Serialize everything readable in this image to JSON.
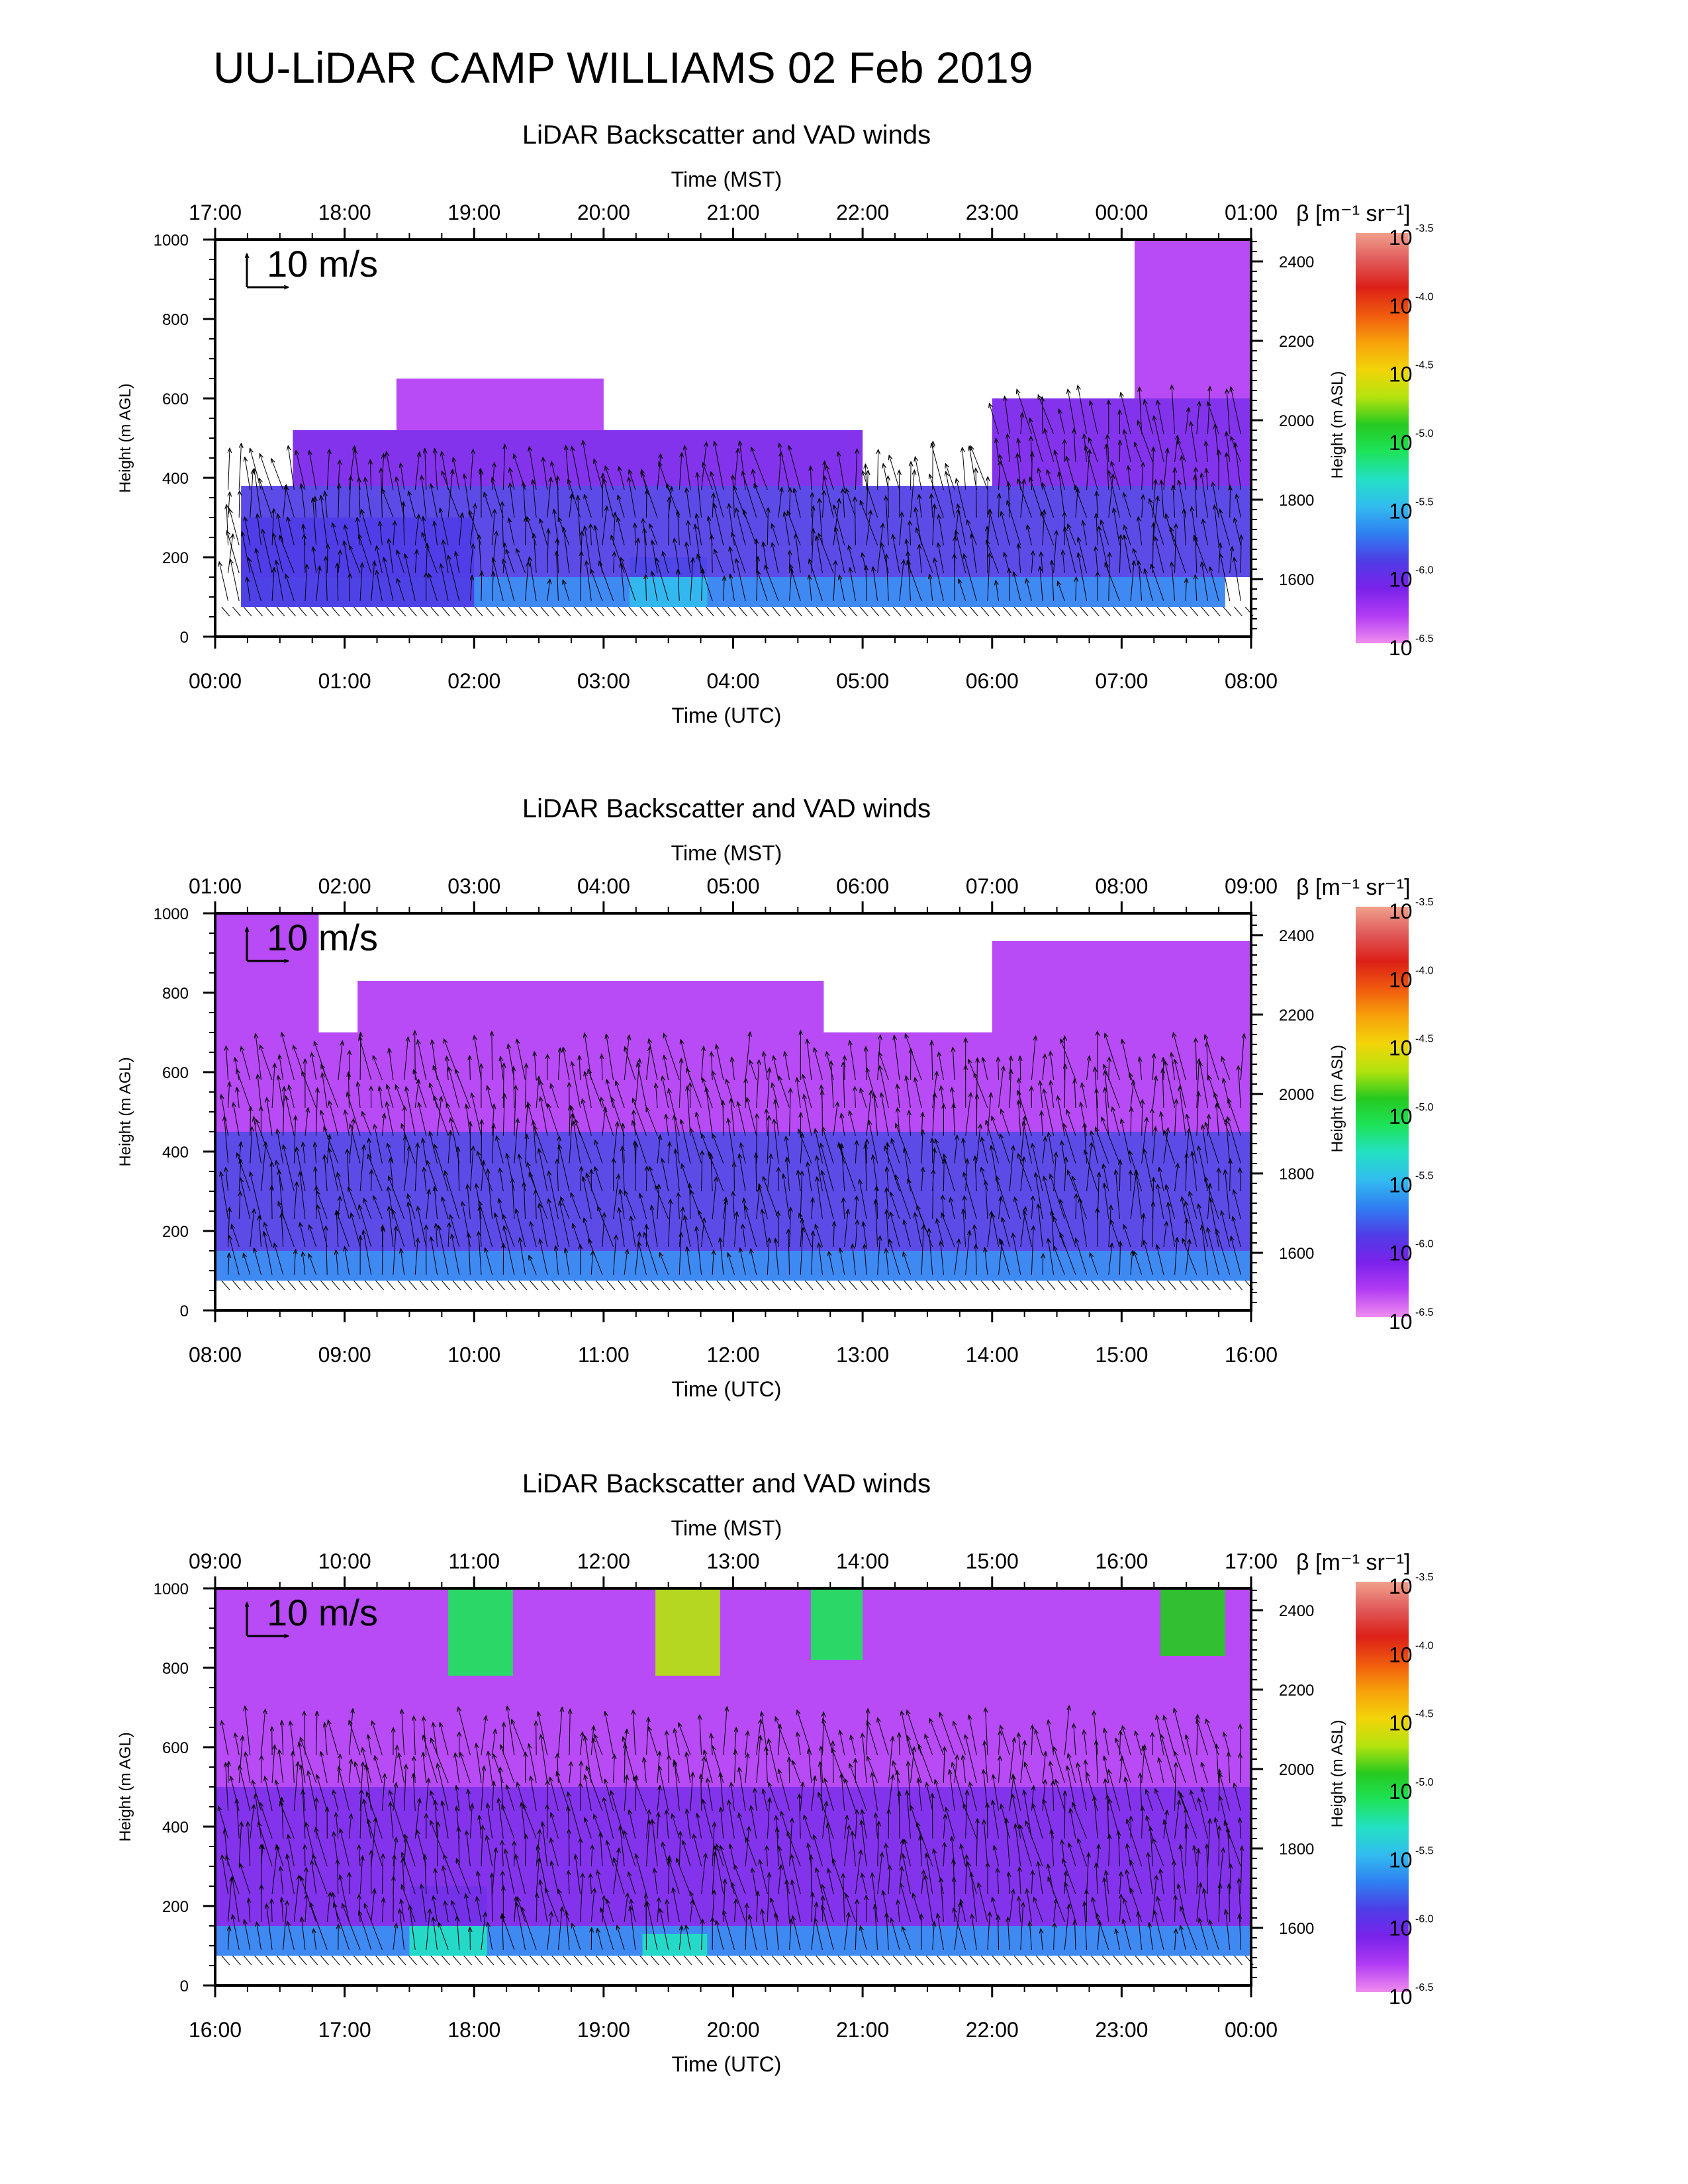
{
  "figure": {
    "title": "UU-LiDAR CAMP WILLIAMS 02 Feb 2019"
  },
  "colors": {
    "scale": [
      "#ef8cef",
      "#b23cf4",
      "#7a22ea",
      "#4f3ce6",
      "#2f7ff2",
      "#32bbef",
      "#23e0c4",
      "#1de35a",
      "#26c91f",
      "#b4e30e",
      "#f2d409",
      "#f7a10b",
      "#f05a0e",
      "#dc2018",
      "#e05a5a",
      "#f0a08c"
    ],
    "wind_vector": "#000000",
    "background": "#ffffff"
  },
  "chart_data": [
    {
      "type": "heatmap",
      "title": "LiDAR Backscatter and VAD winds",
      "top_axis_label": "Time (MST)",
      "top_ticks": [
        "17:00",
        "18:00",
        "19:00",
        "20:00",
        "21:00",
        "22:00",
        "23:00",
        "00:00",
        "01:00"
      ],
      "xlabel": "Time (UTC)",
      "x_ticks": [
        "00:00",
        "01:00",
        "02:00",
        "03:00",
        "04:00",
        "05:00",
        "06:00",
        "07:00",
        "08:00"
      ],
      "ylabel": "Height (m AGL)",
      "ylim": [
        0,
        1000
      ],
      "y_ticks": [
        0,
        200,
        400,
        600,
        800,
        1000
      ],
      "ylabel_right": "Height (m ASL)",
      "right_ticks": [
        1600,
        1800,
        2000,
        2200,
        2400
      ],
      "vector_key": "10 m/s",
      "colorbar": {
        "label": "β [m⁻¹ sr⁻¹]",
        "base": "10",
        "exponents": [
          "-3.5",
          "-4.0",
          "-4.5",
          "-5.0",
          "-5.5",
          "-6.0",
          "-6.5"
        ]
      },
      "data_bottom_m": 75,
      "layers": [
        {
          "x": [
            0.2,
            7.8
          ],
          "y": [
            75,
            150
          ],
          "log_beta": -5.8
        },
        {
          "x": [
            0.2,
            2.0
          ],
          "y": [
            75,
            300
          ],
          "log_beta": -6.0
        },
        {
          "x": [
            3.2,
            3.8
          ],
          "y": [
            75,
            200
          ],
          "log_beta": -5.7
        },
        {
          "x": [
            0.2,
            8.0
          ],
          "y": [
            150,
            380
          ],
          "log_beta": -6.2
        },
        {
          "x": [
            6.0,
            8.0
          ],
          "y": [
            380,
            600
          ],
          "log_beta": -6.4
        },
        {
          "x": [
            0.6,
            5.0
          ],
          "y": [
            380,
            520
          ],
          "log_beta": -6.4
        },
        {
          "x": [
            1.4,
            3.0
          ],
          "y": [
            520,
            650
          ],
          "log_beta": -6.6
        },
        {
          "x": [
            7.1,
            8.0
          ],
          "y": [
            600,
            1000
          ],
          "log_beta": -6.5
        }
      ]
    },
    {
      "type": "heatmap",
      "title": "LiDAR Backscatter and VAD winds",
      "top_axis_label": "Time (MST)",
      "top_ticks": [
        "01:00",
        "02:00",
        "03:00",
        "04:00",
        "05:00",
        "06:00",
        "07:00",
        "08:00",
        "09:00"
      ],
      "xlabel": "Time (UTC)",
      "x_ticks": [
        "08:00",
        "09:00",
        "10:00",
        "11:00",
        "12:00",
        "13:00",
        "14:00",
        "15:00",
        "16:00"
      ],
      "ylabel": "Height (m AGL)",
      "ylim": [
        0,
        1000
      ],
      "y_ticks": [
        0,
        200,
        400,
        600,
        800,
        1000
      ],
      "ylabel_right": "Height (m ASL)",
      "right_ticks": [
        1600,
        1800,
        2000,
        2200,
        2400
      ],
      "vector_key": "10 m/s",
      "colorbar": {
        "label": "β [m⁻¹ sr⁻¹]",
        "base": "10",
        "exponents": [
          "-3.5",
          "-4.0",
          "-4.5",
          "-5.0",
          "-5.5",
          "-6.0",
          "-6.5"
        ]
      },
      "data_bottom_m": 75,
      "layers": [
        {
          "x": [
            0.0,
            8.0
          ],
          "y": [
            75,
            150
          ],
          "log_beta": -5.9
        },
        {
          "x": [
            0.0,
            8.0
          ],
          "y": [
            150,
            450
          ],
          "log_beta": -6.2
        },
        {
          "x": [
            0.0,
            8.0
          ],
          "y": [
            450,
            700
          ],
          "log_beta": -6.5
        },
        {
          "x": [
            1.1,
            4.7
          ],
          "y": [
            700,
            830
          ],
          "log_beta": -6.6
        },
        {
          "x": [
            6.0,
            8.0
          ],
          "y": [
            700,
            930
          ],
          "log_beta": -6.6
        },
        {
          "x": [
            0.0,
            0.8
          ],
          "y": [
            700,
            1000
          ],
          "log_beta": -6.6
        }
      ]
    },
    {
      "type": "heatmap",
      "title": "LiDAR Backscatter and VAD winds",
      "top_axis_label": "Time (MST)",
      "top_ticks": [
        "09:00",
        "10:00",
        "11:00",
        "12:00",
        "13:00",
        "14:00",
        "15:00",
        "16:00",
        "17:00"
      ],
      "xlabel": "Time (UTC)",
      "x_ticks": [
        "16:00",
        "17:00",
        "18:00",
        "19:00",
        "20:00",
        "21:00",
        "22:00",
        "23:00",
        "00:00"
      ],
      "ylabel": "Height (m AGL)",
      "ylim": [
        0,
        1000
      ],
      "y_ticks": [
        0,
        200,
        400,
        600,
        800,
        1000
      ],
      "ylabel_right": "Height (m ASL)",
      "right_ticks": [
        1600,
        1800,
        2000,
        2200,
        2400
      ],
      "vector_key": "10 m/s",
      "colorbar": {
        "label": "β [m⁻¹ sr⁻¹]",
        "base": "10",
        "exponents": [
          "-3.5",
          "-4.0",
          "-4.5",
          "-5.0",
          "-5.5",
          "-6.0",
          "-6.5"
        ]
      },
      "data_bottom_m": 75,
      "layers": [
        {
          "x": [
            0.0,
            8.0
          ],
          "y": [
            75,
            150
          ],
          "log_beta": -5.9
        },
        {
          "x": [
            1.5,
            2.1
          ],
          "y": [
            75,
            250
          ],
          "log_beta": -5.5
        },
        {
          "x": [
            3.3,
            3.8
          ],
          "y": [
            75,
            130
          ],
          "log_beta": -5.5
        },
        {
          "x": [
            0.0,
            8.0
          ],
          "y": [
            150,
            500
          ],
          "log_beta": -6.3
        },
        {
          "x": [
            0.0,
            8.0
          ],
          "y": [
            500,
            1000
          ],
          "log_beta": -6.5
        },
        {
          "x": [
            1.8,
            2.3
          ],
          "y": [
            780,
            1000
          ],
          "log_beta": -5.3
        },
        {
          "x": [
            3.4,
            3.9
          ],
          "y": [
            780,
            1000
          ],
          "log_beta": -4.8
        },
        {
          "x": [
            4.6,
            5.0
          ],
          "y": [
            820,
            1000
          ],
          "log_beta": -5.2
        },
        {
          "x": [
            7.3,
            7.8
          ],
          "y": [
            830,
            1000
          ],
          "log_beta": -5.0
        }
      ]
    }
  ]
}
